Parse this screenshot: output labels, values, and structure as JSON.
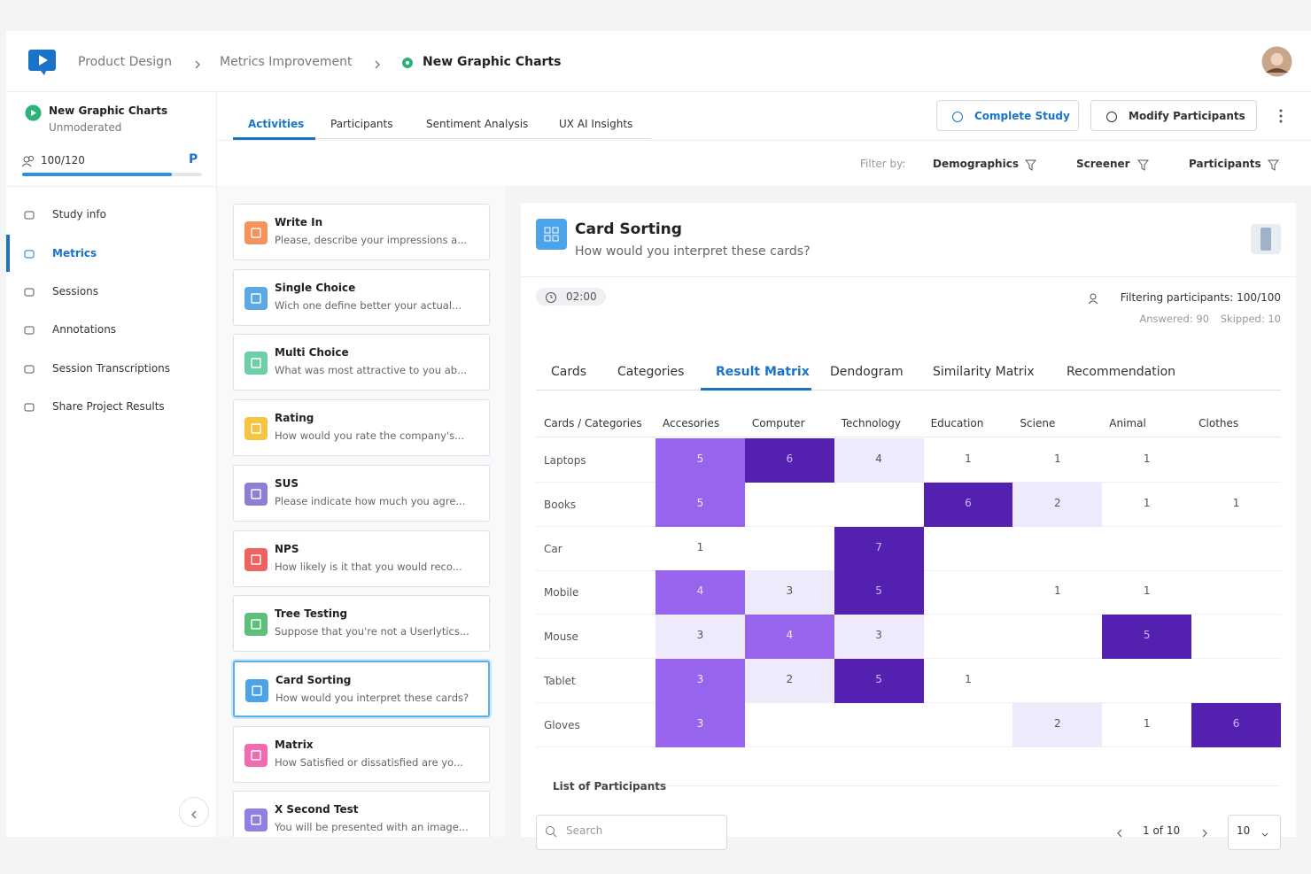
{
  "breadcrumbs": [
    "Product Design",
    "Metrics Improvement",
    "New Graphic Charts"
  ],
  "study": {
    "name": "New Graphic Charts",
    "mode": "Unmoderated",
    "participants": "100/120",
    "plan": "P"
  },
  "nav": {
    "items": [
      "Study info",
      "Metrics",
      "Sessions",
      "Annotations",
      "Session Transcriptions",
      "Share Project Results"
    ],
    "active": 1
  },
  "tabs": {
    "items": [
      "Activities",
      "Participants",
      "Sentiment Analysis",
      "UX AI Insights"
    ],
    "active": 0
  },
  "actions": [
    "Complete Study",
    "Modify Participants"
  ],
  "filter": {
    "label": "Filter by:",
    "items": [
      "Demographics",
      "Screener",
      "Participants"
    ]
  },
  "activities": {
    "selected": 7,
    "items": [
      {
        "title": "Write In",
        "description": "Please, describe your impressions a...",
        "color": "#f7935a"
      },
      {
        "title": "Single Choice",
        "description": "Wich one define better your actual...",
        "color": "#5aa9e6"
      },
      {
        "title": "Multi Choice",
        "description": "What was most attractive to you ab...",
        "color": "#6ccfa8"
      },
      {
        "title": "Rating",
        "description": "How would you rate the company's...",
        "color": "#f5c542"
      },
      {
        "title": "SUS",
        "description": "Please indicate how much you agre...",
        "color": "#8b7fd6"
      },
      {
        "title": "NPS",
        "description": "How likely is it that you would reco...",
        "color": "#f0625f"
      },
      {
        "title": "Tree Testing",
        "description": "Suppose that you're not a Userlytics...",
        "color": "#5cbf7a"
      },
      {
        "title": "Card Sorting",
        "description": "How would you interpret these cards?",
        "color": "#4da3e8"
      },
      {
        "title": "Matrix",
        "description": "How Satisfied or dissatisfied are yo...",
        "color": "#f06bb0"
      },
      {
        "title": "X Second Test",
        "description": "You will be presented with an image...",
        "color": "#8e7fe0"
      }
    ]
  },
  "detail": {
    "title": "Card Sorting",
    "question": "How would you interpret these cards?",
    "time": "02:00",
    "filtering": "Filtering participants: 100/100",
    "answered": "Answered: 90",
    "skipped": "Skipped: 10",
    "tabs": [
      "Cards",
      "Categories",
      "Result Matrix",
      "Dendogram",
      "Similarity Matrix",
      "Recommendation"
    ],
    "active_tab": 2
  },
  "matrix": {
    "corner": "Cards / Categories",
    "columns": [
      "Accesories",
      "Computer",
      "Technology",
      "Education",
      "Sciene",
      "Animal",
      "Clothes"
    ],
    "rows": [
      {
        "card": "Laptops",
        "values": [
          5,
          6,
          4,
          1,
          1,
          1,
          null
        ]
      },
      {
        "card": "Books",
        "values": [
          5,
          null,
          null,
          6,
          2,
          1,
          1
        ]
      },
      {
        "card": "Car",
        "values": [
          1,
          null,
          7,
          null,
          null,
          null,
          null
        ]
      },
      {
        "card": "Mobile",
        "values": [
          4,
          3,
          5,
          null,
          1,
          1,
          null
        ]
      },
      {
        "card": "Mouse",
        "values": [
          3,
          4,
          3,
          null,
          null,
          5,
          null
        ]
      },
      {
        "card": "Tablet",
        "values": [
          3,
          2,
          5,
          1,
          null,
          null,
          null
        ]
      },
      {
        "card": "Gloves",
        "values": [
          3,
          null,
          null,
          null,
          2,
          1,
          6
        ]
      }
    ]
  },
  "participants": {
    "title": "List of Participants",
    "search": "Search",
    "page": "1 of 10",
    "page_size": "10"
  }
}
